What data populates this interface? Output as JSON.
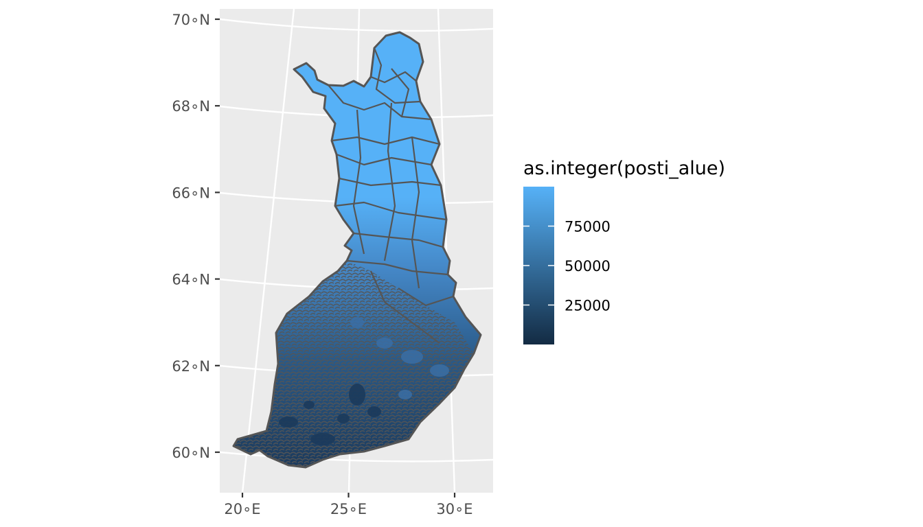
{
  "map": {
    "type": "choropleth",
    "projection": "Lambert conformal conic",
    "panel_background": "#ebebeb",
    "gridline_color": "#ffffff",
    "region_outline_color": "#555555",
    "fill_variable": "as.integer(posti_alue)",
    "x_axis": {
      "ticks": [
        {
          "value": 20,
          "label": "20∘E"
        },
        {
          "value": 25,
          "label": "25∘E"
        },
        {
          "value": 30,
          "label": "30∘E"
        }
      ],
      "range": [
        19.1,
        31.7
      ]
    },
    "y_axis": {
      "ticks": [
        {
          "value": 60,
          "label": "60∘N"
        },
        {
          "value": 62,
          "label": "62∘N"
        },
        {
          "value": 64,
          "label": "64∘N"
        },
        {
          "value": 66,
          "label": "66∘N"
        },
        {
          "value": 68,
          "label": "68∘N"
        },
        {
          "value": 70,
          "label": "70∘N"
        }
      ],
      "range": [
        59.1,
        70.3
      ]
    },
    "legend": {
      "title": "as.integer(posti_alue)",
      "position": "right",
      "gradient_low": "#132b43",
      "gradient_high": "#56b1f7",
      "value_range": [
        0,
        99999
      ],
      "breaks": [
        {
          "value": 75000,
          "label": "75000"
        },
        {
          "value": 50000,
          "label": "50000"
        },
        {
          "value": 25000,
          "label": "25000"
        }
      ]
    }
  }
}
